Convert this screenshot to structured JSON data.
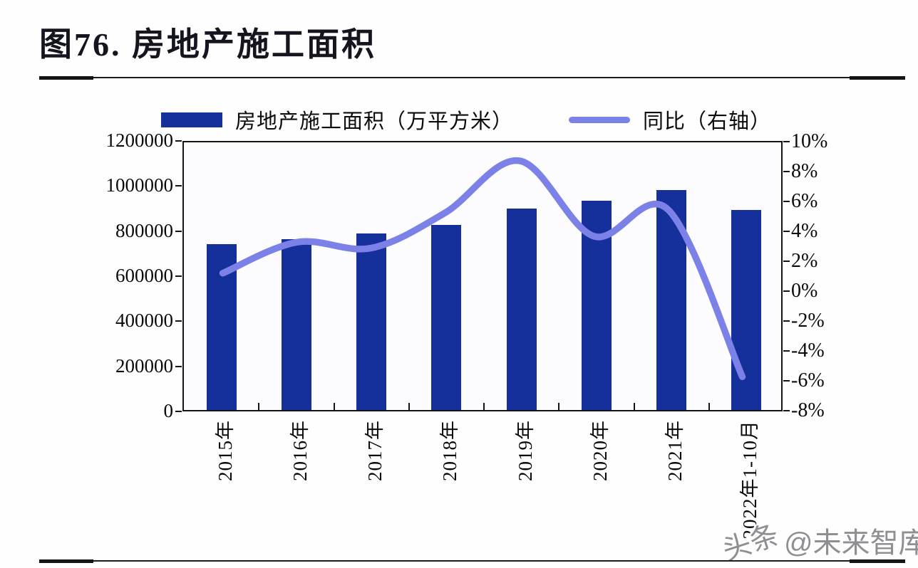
{
  "title": "图76. 房地产施工面积",
  "legend": {
    "bar_label": "房地产施工面积（万平方米）",
    "line_label": "同比（右轴）"
  },
  "watermark": {
    "prefix": "头条",
    "handle": "@未来智库"
  },
  "colors": {
    "bar": "#15309B",
    "line": "#7C81E8",
    "axis": "#141414",
    "title_text": "#15151f"
  },
  "chart_data": {
    "type": "bar",
    "title": "图76. 房地产施工面积",
    "categories": [
      "2015年",
      "2016年",
      "2017年",
      "2018年",
      "2019年",
      "2020年",
      "2021年",
      "2022年1-10月"
    ],
    "series": [
      {
        "name": "房地产施工面积（万平方米）",
        "type": "bar",
        "axis": "left",
        "color": "#15309B",
        "values": [
          735000,
          759000,
          782000,
          822000,
          894000,
          927000,
          975000,
          888000
        ]
      },
      {
        "name": "同比（右轴）",
        "type": "line",
        "axis": "right",
        "color": "#7C81E8",
        "values": [
          1.2,
          3.3,
          2.9,
          5.3,
          8.8,
          3.7,
          5.5,
          -5.8
        ]
      }
    ],
    "left_axis": {
      "min": 0,
      "max": 1200000,
      "step": 200000,
      "tick_labels": [
        "1200000",
        "1000000",
        "800000",
        "600000",
        "400000",
        "200000",
        "0"
      ]
    },
    "right_axis": {
      "min": -8,
      "max": 10,
      "step": 2,
      "unit": "%",
      "tick_labels": [
        "10%",
        "8%",
        "6%",
        "4%",
        "2%",
        "0%",
        "-2%",
        "-4%",
        "-6%",
        "-8%"
      ]
    },
    "legend_position": "top",
    "grid": false
  }
}
